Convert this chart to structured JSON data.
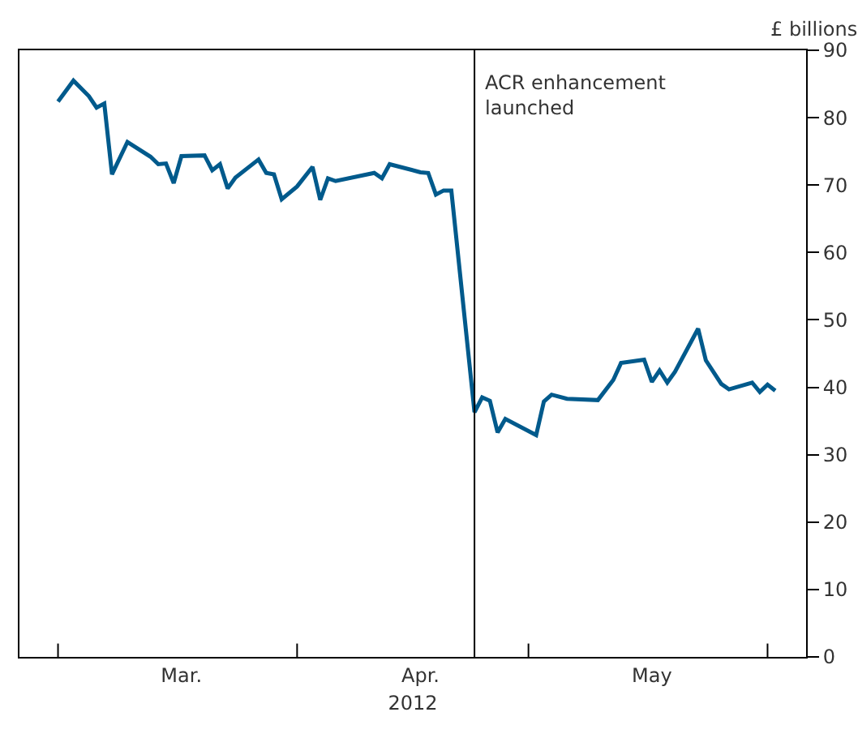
{
  "chart_data": {
    "type": "line",
    "xlabel": "2012",
    "ylabel": "£ billions",
    "x": [
      "2012-03-01",
      "2012-03-03",
      "2012-03-05",
      "2012-03-06",
      "2012-03-07",
      "2012-03-08",
      "2012-03-10",
      "2012-03-13",
      "2012-03-14",
      "2012-03-15",
      "2012-03-16",
      "2012-03-17",
      "2012-03-20",
      "2012-03-21",
      "2012-03-22",
      "2012-03-23",
      "2012-03-24",
      "2012-03-27",
      "2012-03-28",
      "2012-03-29",
      "2012-03-30",
      "2012-04-01",
      "2012-04-03",
      "2012-04-04",
      "2012-04-05",
      "2012-04-06",
      "2012-04-11",
      "2012-04-12",
      "2012-04-13",
      "2012-04-17",
      "2012-04-18",
      "2012-04-19",
      "2012-04-20",
      "2012-04-21",
      "2012-04-24",
      "2012-04-25",
      "2012-04-26",
      "2012-04-27",
      "2012-04-28",
      "2012-05-02",
      "2012-05-03",
      "2012-05-04",
      "2012-05-06",
      "2012-05-10",
      "2012-05-12",
      "2012-05-13",
      "2012-05-16",
      "2012-05-17",
      "2012-05-18",
      "2012-05-19",
      "2012-05-20",
      "2012-05-23",
      "2012-05-24",
      "2012-05-26",
      "2012-05-27",
      "2012-05-30",
      "2012-05-31",
      "2012-06-01",
      "2012-06-02"
    ],
    "series": [
      {
        "color": "#005a8c",
        "values": [
          82.4,
          85.5,
          83.2,
          81.5,
          82.1,
          71.6,
          76.4,
          74.2,
          73.1,
          73.2,
          70.3,
          74.3,
          74.4,
          72.2,
          73.1,
          69.5,
          71.1,
          73.8,
          71.8,
          71.6,
          67.9,
          69.8,
          72.7,
          67.8,
          71.0,
          70.6,
          71.8,
          71.0,
          73.1,
          71.9,
          71.8,
          68.6,
          69.2,
          69.2,
          36.3,
          38.5,
          38.0,
          33.3,
          35.3,
          32.9,
          37.9,
          38.9,
          38.3,
          38.1,
          41.1,
          43.6,
          44.1,
          40.8,
          42.5,
          40.7,
          42.3,
          48.7,
          44.0,
          40.5,
          39.7,
          40.7,
          39.3,
          40.4,
          39.5
        ]
      }
    ],
    "xlim": [
      "2012-02-25",
      "2012-06-06"
    ],
    "xticks": [
      {
        "value": "2012-03-01",
        "label": null
      },
      {
        "value": "2012-03-17",
        "label": "Mar."
      },
      {
        "value": "2012-04-01",
        "label": null
      },
      {
        "value": "2012-04-17",
        "label": "Apr."
      },
      {
        "value": "2012-05-01",
        "label": null
      },
      {
        "value": "2012-05-17",
        "label": "May"
      },
      {
        "value": "2012-06-01",
        "label": null
      }
    ],
    "ylim": [
      0,
      90
    ],
    "yticks": [
      0,
      10,
      20,
      30,
      40,
      50,
      60,
      70,
      80,
      90
    ],
    "ref_lines": [
      {
        "axis": "x",
        "value": "2012-04-24",
        "label": "ACR enhancement\nlaunched",
        "color": "#000000"
      }
    ],
    "grid": false,
    "marker": "none",
    "line_style": "solid"
  }
}
